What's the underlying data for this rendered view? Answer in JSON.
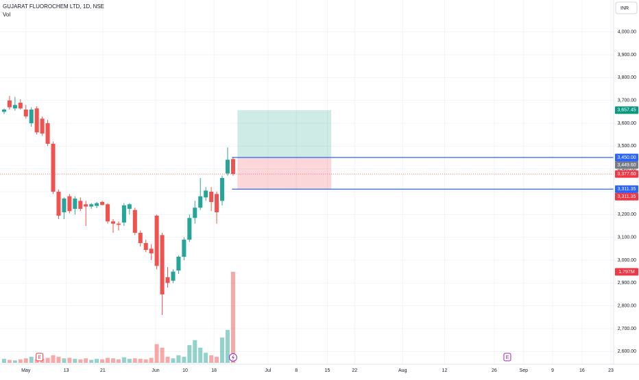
{
  "chart_data": {
    "type": "candlestick",
    "title": "GUJARAT FLUOROCHEM LTD, 1D, NSE",
    "subtitle": "Vol",
    "currency": "INR",
    "up_color": "#26a69a",
    "down_color": "#ef5350",
    "open": [
      3650,
      3700,
      3665,
      3690,
      3660,
      3600,
      3665,
      3620,
      3600,
      3510,
      3300,
      3210,
      3280,
      3225,
      3260,
      3245,
      3235,
      3238,
      3255,
      3245,
      3170,
      3160,
      3165,
      3225,
      3220,
      3120,
      3075,
      3050,
      3195,
      3110,
      2925,
      2910,
      2955,
      3015,
      3090,
      3185,
      3230,
      3275,
      3300,
      3290,
      3260,
      3380,
      3443
    ],
    "high": [
      3665,
      3720,
      3715,
      3705,
      3680,
      3670,
      3675,
      3630,
      3615,
      3520,
      3310,
      3275,
      3290,
      3280,
      3275,
      3260,
      3250,
      3255,
      3260,
      3250,
      3180,
      3170,
      3250,
      3250,
      3230,
      3130,
      3090,
      3070,
      3200,
      3120,
      2970,
      2960,
      3020,
      3100,
      3200,
      3260,
      3360,
      3320,
      3320,
      3300,
      3370,
      3494,
      3450
    ],
    "low": [
      3640,
      3660,
      3655,
      3660,
      3620,
      3585,
      3550,
      3545,
      3500,
      3290,
      3180,
      3180,
      3205,
      3200,
      3215,
      3150,
      3225,
      3228,
      3240,
      3160,
      3120,
      3130,
      3150,
      3200,
      3110,
      3060,
      3035,
      3000,
      2960,
      2760,
      2880,
      2900,
      2940,
      3000,
      3080,
      3160,
      3220,
      3260,
      3215,
      3160,
      3240,
      3370,
      3370
    ],
    "close": [
      3660,
      3670,
      3680,
      3665,
      3630,
      3660,
      3560,
      3555,
      3510,
      3300,
      3195,
      3270,
      3215,
      3270,
      3225,
      3235,
      3245,
      3250,
      3242,
      3170,
      3160,
      3155,
      3240,
      3245,
      3120,
      3075,
      3045,
      3030,
      2975,
      2850,
      2900,
      2950,
      3015,
      3090,
      3185,
      3230,
      3280,
      3305,
      3255,
      3210,
      3360,
      3440,
      3377.6
    ],
    "volume": [
      0.08,
      0.06,
      0.05,
      0.07,
      0.09,
      0.12,
      0.07,
      0.08,
      0.1,
      0.15,
      0.12,
      0.09,
      0.1,
      0.08,
      0.07,
      0.09,
      0.06,
      0.08,
      0.07,
      0.1,
      0.09,
      0.07,
      0.11,
      0.08,
      0.09,
      0.08,
      0.07,
      0.1,
      0.37,
      0.3,
      0.12,
      0.09,
      0.15,
      0.12,
      0.35,
      0.45,
      0.3,
      0.2,
      0.15,
      0.12,
      0.5,
      0.65,
      1.797
    ],
    "vol_ylim": [
      0,
      7.16
    ],
    "xlim": [
      -0.75,
      111.8
    ],
    "xticks": [
      {
        "value": 4.0,
        "label": "May"
      },
      {
        "value": 11.4,
        "label": "13"
      },
      {
        "value": 18.1,
        "label": "21"
      },
      {
        "value": 27.8,
        "label": "Jun"
      },
      {
        "value": 33.2,
        "label": "10"
      },
      {
        "value": 38.5,
        "label": "18"
      },
      {
        "value": 48.4,
        "label": "Jul"
      },
      {
        "value": 53.6,
        "label": "8"
      },
      {
        "value": 59.3,
        "label": "15"
      },
      {
        "value": 64.3,
        "label": "22"
      },
      {
        "value": 73.1,
        "label": "Aug"
      },
      {
        "value": 80.8,
        "label": "12"
      },
      {
        "value": 89.9,
        "label": "26"
      },
      {
        "value": 95.3,
        "label": "Sep"
      },
      {
        "value": 100.6,
        "label": "9"
      },
      {
        "value": 106.0,
        "label": "16"
      },
      {
        "value": 111.3,
        "label": "23"
      }
    ],
    "ylim": [
      2550,
      4140
    ],
    "yticks": [
      {
        "value": 2600,
        "label": "2,600.00"
      },
      {
        "value": 2700,
        "label": "2,700.00"
      },
      {
        "value": 2800,
        "label": "2,800.00"
      },
      {
        "value": 2900,
        "label": "2,900.00"
      },
      {
        "value": 3000,
        "label": "3,000.00"
      },
      {
        "value": 3100,
        "label": "3,100.00"
      },
      {
        "value": 3200,
        "label": "3,200.00"
      },
      {
        "value": 3300,
        "label": "3,300.00"
      },
      {
        "value": 3400,
        "label": "3,400.00"
      },
      {
        "value": 3500,
        "label": "3,500.00"
      },
      {
        "value": 3600,
        "label": "3,600.00"
      },
      {
        "value": 3700,
        "label": "3,700.00"
      },
      {
        "value": 3800,
        "label": "3,800.00"
      },
      {
        "value": 3900,
        "label": "3,900.00"
      },
      {
        "value": 4000,
        "label": "4,000.00"
      }
    ],
    "grid": true,
    "position": {
      "start": 42.8,
      "end": 60.0,
      "entry": 3449.6,
      "target": 3657.45,
      "stop": 3311.35
    },
    "level_lines": [
      {
        "value": 3450,
        "start": 41.8,
        "color": "#2962ff"
      },
      {
        "value": 3311.35,
        "start": 41.8,
        "color": "#2962ff"
      }
    ],
    "price_labels": [
      {
        "value": 3657.45,
        "label": "3,657.45",
        "color": "#089981"
      },
      {
        "value": 3450,
        "label": "3,450.00",
        "color": "#2962ff"
      },
      {
        "value": 3449.6,
        "label": "3,449.60",
        "color": "#787b86"
      },
      {
        "value": 3377.6,
        "label": "3,377.60",
        "color": "#f23645"
      },
      {
        "value": 3311.35,
        "label": "3,311.35",
        "color": "#2962ff"
      },
      {
        "value": 3311.35,
        "label": "3,311.35",
        "color": "#f23645"
      }
    ],
    "volume_label": {
      "value": 1.797,
      "label": "1.797M",
      "color": "#f23645"
    },
    "events": [
      {
        "x": 6.5,
        "label": "E",
        "color": "#f23645"
      },
      {
        "x": 92.3,
        "label": "E",
        "color": "#9c27b0"
      }
    ]
  }
}
